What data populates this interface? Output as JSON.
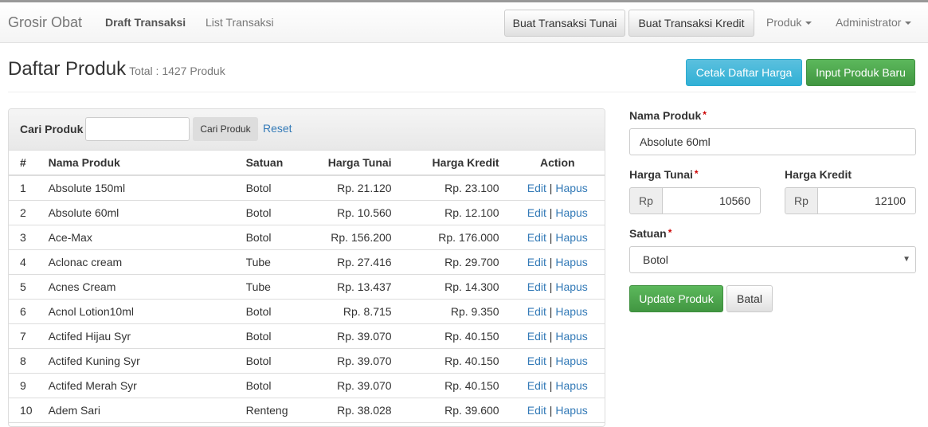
{
  "nav": {
    "brand": "Grosir Obat",
    "draft": "Draft Transaksi",
    "list": "List Transaksi",
    "tunai_btn": "Buat Transaksi Tunai",
    "kredit_btn": "Buat Transaksi Kredit",
    "produk": "Produk",
    "admin": "Administrator"
  },
  "header": {
    "title": "Daftar Produk",
    "total": "Total : 1427 Produk",
    "cetak": "Cetak Daftar Harga",
    "input_baru": "Input Produk Baru"
  },
  "search": {
    "label": "Cari Produk",
    "value": "",
    "button": "Cari Produk",
    "reset": "Reset"
  },
  "table": {
    "columns": [
      "#",
      "Nama Produk",
      "Satuan",
      "Harga Tunai",
      "Harga Kredit",
      "Action"
    ],
    "rows": [
      [
        "1",
        "Absolute 150ml",
        "Botol",
        "Rp. 21.120",
        "Rp. 23.100"
      ],
      [
        "2",
        "Absolute 60ml",
        "Botol",
        "Rp. 10.560",
        "Rp. 12.100"
      ],
      [
        "3",
        "Ace-Max",
        "Botol",
        "Rp. 156.200",
        "Rp. 176.000"
      ],
      [
        "4",
        "Aclonac cream",
        "Tube",
        "Rp. 27.416",
        "Rp. 29.700"
      ],
      [
        "5",
        "Acnes Cream",
        "Tube",
        "Rp. 13.437",
        "Rp. 14.300"
      ],
      [
        "6",
        "Acnol Lotion10ml",
        "Botol",
        "Rp. 8.715",
        "Rp. 9.350"
      ],
      [
        "7",
        "Actifed Hijau Syr",
        "Botol",
        "Rp. 39.070",
        "Rp. 40.150"
      ],
      [
        "8",
        "Actifed Kuning Syr",
        "Botol",
        "Rp. 39.070",
        "Rp. 40.150"
      ],
      [
        "9",
        "Actifed Merah Syr",
        "Botol",
        "Rp. 39.070",
        "Rp. 40.150"
      ],
      [
        "10",
        "Adem Sari",
        "Renteng",
        "Rp. 38.028",
        "Rp. 39.600"
      ]
    ],
    "edit": "Edit",
    "sep": "|",
    "hapus": "Hapus"
  },
  "form": {
    "nama_label": "Nama Produk",
    "nama_value": "Absolute 60ml",
    "tunai_label": "Harga Tunai",
    "kredit_label": "Harga Kredit",
    "rp": "Rp",
    "tunai_value": "10560",
    "kredit_value": "12100",
    "satuan_label": "Satuan",
    "satuan_value": "Botol",
    "required": "*",
    "update": "Update Produk",
    "batal": "Batal"
  },
  "colors": {
    "info": "#46b8da",
    "success": "#449d44",
    "link": "#337ab7"
  }
}
